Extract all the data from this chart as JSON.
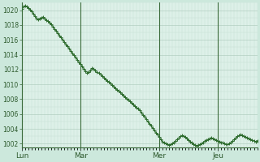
{
  "background_color": "#cce8dc",
  "plot_bg_color": "#ddf0e8",
  "line_color": "#2d6b2d",
  "marker_color": "#2d6b2d",
  "grid_major_color": "#aac8b8",
  "grid_minor_color": "#c4ddd0",
  "vline_color": "#3a6b3a",
  "tick_label_color": "#2d5a2d",
  "ylim": [
    1001.5,
    1021.0
  ],
  "yticks": [
    1002,
    1004,
    1006,
    1008,
    1010,
    1012,
    1014,
    1016,
    1018,
    1020
  ],
  "day_labels": [
    "Lun",
    "Mar",
    "Mer",
    "Jeu"
  ],
  "num_points": 145,
  "pressure_values": [
    1020.2,
    1020.5,
    1020.6,
    1020.5,
    1020.3,
    1020.1,
    1019.8,
    1019.5,
    1019.2,
    1018.9,
    1018.8,
    1018.9,
    1019.0,
    1019.1,
    1018.9,
    1018.7,
    1018.5,
    1018.3,
    1018.1,
    1017.8,
    1017.5,
    1017.2,
    1016.9,
    1016.6,
    1016.3,
    1016.0,
    1015.7,
    1015.4,
    1015.1,
    1014.8,
    1014.5,
    1014.2,
    1013.9,
    1013.6,
    1013.3,
    1013.0,
    1012.7,
    1012.4,
    1012.1,
    1011.8,
    1011.6,
    1011.7,
    1011.9,
    1012.2,
    1012.1,
    1011.9,
    1011.7,
    1011.5,
    1011.3,
    1011.1,
    1010.9,
    1010.7,
    1010.5,
    1010.3,
    1010.1,
    1009.9,
    1009.7,
    1009.5,
    1009.3,
    1009.1,
    1008.9,
    1008.7,
    1008.5,
    1008.3,
    1008.1,
    1007.9,
    1007.7,
    1007.5,
    1007.3,
    1007.1,
    1006.9,
    1006.7,
    1006.5,
    1006.2,
    1005.9,
    1005.6,
    1005.3,
    1005.0,
    1004.7,
    1004.4,
    1004.1,
    1003.8,
    1003.5,
    1003.2,
    1002.9,
    1002.6,
    1002.3,
    1002.1,
    1002.0,
    1001.9,
    1001.8,
    1001.9,
    1002.0,
    1002.2,
    1002.4,
    1002.6,
    1002.8,
    1003.0,
    1003.1,
    1003.0,
    1002.9,
    1002.7,
    1002.5,
    1002.3,
    1002.1,
    1001.9,
    1001.8,
    1001.7,
    1001.8,
    1001.9,
    1002.0,
    1002.2,
    1002.4,
    1002.5,
    1002.6,
    1002.7,
    1002.8,
    1002.7,
    1002.6,
    1002.5,
    1002.4,
    1002.3,
    1002.2,
    1002.1,
    1002.0,
    1001.9,
    1001.9,
    1002.0,
    1002.2,
    1002.4,
    1002.6,
    1002.8,
    1003.0,
    1003.1,
    1003.2,
    1003.1,
    1003.0,
    1002.9,
    1002.8,
    1002.7,
    1002.6,
    1002.5,
    1002.4,
    1002.3,
    1002.4
  ]
}
